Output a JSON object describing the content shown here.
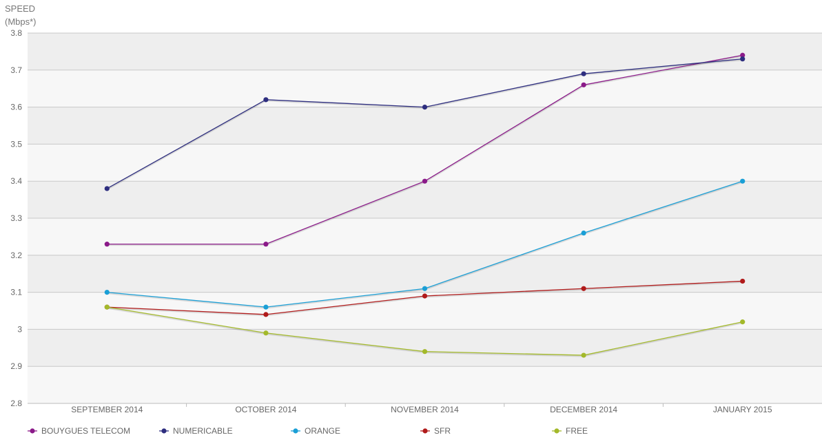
{
  "chart_data": {
    "type": "line",
    "title": "",
    "ylabel": [
      "SPEED",
      "(Mbps*)"
    ],
    "xlabel": "",
    "categories": [
      "SEPTEMBER 2014",
      "OCTOBER 2014",
      "NOVEMBER 2014",
      "DECEMBER 2014",
      "JANUARY 2015"
    ],
    "ylim": [
      2.8,
      3.8
    ],
    "yticks": [
      "2.8",
      "2.9",
      "3",
      "3.1",
      "3.2",
      "3.3",
      "3.4",
      "3.5",
      "3.6",
      "3.7",
      "3.8"
    ],
    "grid": true,
    "legend_position": "bottom",
    "series": [
      {
        "name": "BOUYGUES TELECOM",
        "color": "#8b1a89",
        "values": [
          3.23,
          3.23,
          3.4,
          3.66,
          3.74
        ]
      },
      {
        "name": "NUMERICABLE",
        "color": "#2e2e7f",
        "values": [
          3.38,
          3.62,
          3.6,
          3.69,
          3.73
        ]
      },
      {
        "name": "ORANGE",
        "color": "#1a9fd6",
        "values": [
          3.1,
          3.06,
          3.11,
          3.26,
          3.4
        ]
      },
      {
        "name": "SFR",
        "color": "#b01a1a",
        "values": [
          3.06,
          3.04,
          3.09,
          3.11,
          3.13
        ]
      },
      {
        "name": "FREE",
        "color": "#a3b92a",
        "values": [
          3.06,
          2.99,
          2.94,
          2.93,
          3.02
        ]
      }
    ]
  }
}
